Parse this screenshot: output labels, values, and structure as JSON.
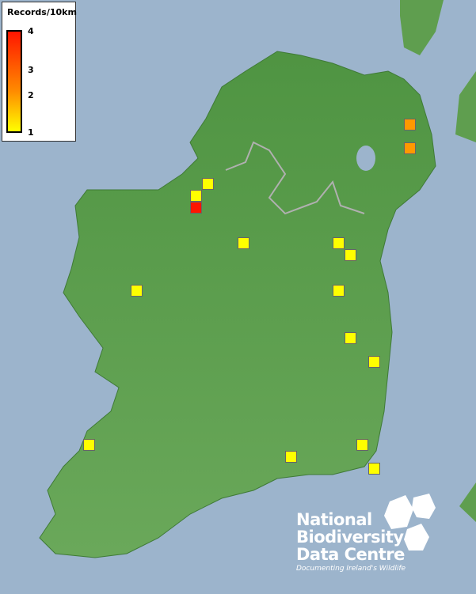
{
  "legend": {
    "title": "Records/10km",
    "ticks": [
      "4",
      "3",
      "2",
      "1"
    ],
    "colors": {
      "low": "#ffff00",
      "mid": "#ff9900",
      "high": "#ff1500"
    }
  },
  "records": [
    1,
    1,
    4,
    1,
    1,
    1,
    1,
    1,
    1,
    1,
    1,
    1,
    1,
    1,
    2,
    2
  ],
  "logo": {
    "line1": "National",
    "line2": "Biodiversity",
    "line3": "Data Centre",
    "tagline": "Documenting Ireland's Wildlife"
  },
  "colors": {
    "sea": "#9cb4cc",
    "land": "#5f9e4f"
  }
}
